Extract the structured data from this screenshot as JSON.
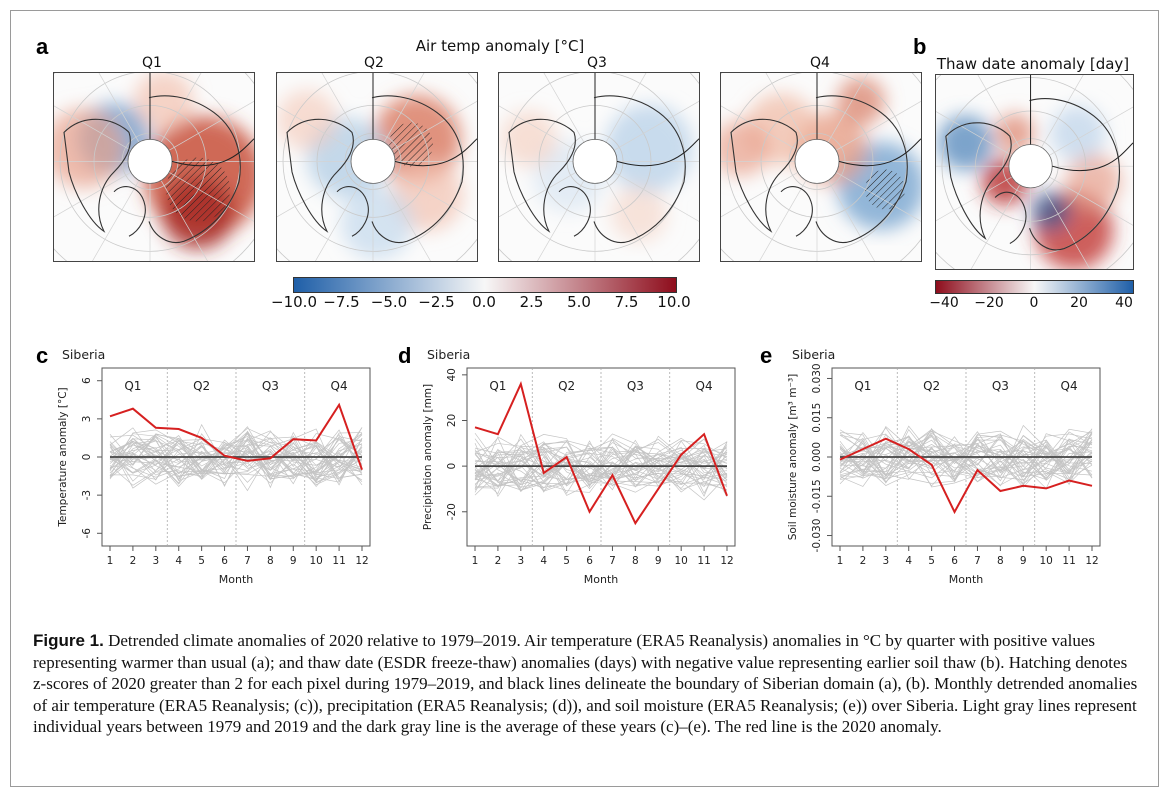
{
  "panels": {
    "a": "a",
    "b": "b",
    "c": "c",
    "d": "d",
    "e": "e"
  },
  "map_panel": {
    "title": "Air temp anomaly [°C]",
    "quarters": [
      "Q1",
      "Q2",
      "Q3",
      "Q4"
    ],
    "colorbar": {
      "ticks": [
        "−10.0",
        "−7.5",
        "−5.0",
        "−2.5",
        "0.0",
        "2.5",
        "5.0",
        "7.5",
        "10.0"
      ],
      "low_color": "#1f5fa8",
      "mid_color": "#f7f7f7",
      "high_color": "#8e0d1c"
    }
  },
  "thaw_panel": {
    "title": "Thaw date anomaly [day]",
    "colorbar": {
      "ticks": [
        "−40",
        "−20",
        "0",
        "20",
        "40"
      ],
      "low_color": "#8e0d1c",
      "mid_color": "#f7f7f7",
      "high_color": "#1f5fa8"
    }
  },
  "chart_data": [
    {
      "type": "line",
      "title": "Siberia",
      "xlabel": "Month",
      "ylabel": "Temperature anomaly [°C]",
      "x": [
        1,
        2,
        3,
        4,
        5,
        6,
        7,
        8,
        9,
        10,
        11,
        12
      ],
      "ylim": [
        -7,
        7
      ],
      "yticks": [
        -6,
        -3,
        0,
        3,
        6
      ],
      "quarters": [
        "Q1",
        "Q2",
        "Q3",
        "Q4"
      ],
      "series": [
        {
          "name": "2020",
          "color": "#d62020",
          "values": [
            3.2,
            3.8,
            2.3,
            2.2,
            1.5,
            0.1,
            -0.3,
            -0.1,
            1.4,
            1.3,
            4.1,
            -1.0
          ]
        }
      ],
      "mean_line": 0
    },
    {
      "type": "line",
      "title": "Siberia",
      "xlabel": "Month",
      "ylabel": "Precipitation anomaly [mm]",
      "x": [
        1,
        2,
        3,
        4,
        5,
        6,
        7,
        8,
        9,
        10,
        11,
        12
      ],
      "ylim": [
        -35,
        43
      ],
      "yticks": [
        -20,
        0,
        20,
        40
      ],
      "quarters": [
        "Q1",
        "Q2",
        "Q3",
        "Q4"
      ],
      "series": [
        {
          "name": "2020",
          "color": "#d62020",
          "values": [
            17,
            14,
            36,
            -3,
            4,
            -20,
            -4,
            -25,
            -10,
            5,
            14,
            -13
          ]
        }
      ],
      "mean_line": 0
    },
    {
      "type": "line",
      "title": "Siberia",
      "xlabel": "Month",
      "ylabel": "Soil moisture anomaly [m³ m⁻³]",
      "x": [
        1,
        2,
        3,
        4,
        5,
        6,
        7,
        8,
        9,
        10,
        11,
        12
      ],
      "ylim": [
        -0.034,
        0.034
      ],
      "yticks": [
        "-0.030",
        "-0.015",
        "0.000",
        "0.015",
        "0.030"
      ],
      "quarters": [
        "Q1",
        "Q2",
        "Q3",
        "Q4"
      ],
      "series": [
        {
          "name": "2020",
          "color": "#d62020",
          "values": [
            -0.001,
            0.003,
            0.007,
            0.003,
            -0.003,
            -0.021,
            -0.005,
            -0.013,
            -0.011,
            -0.012,
            -0.009,
            -0.011
          ]
        }
      ],
      "mean_line": 0
    }
  ],
  "caption": {
    "label": "Figure 1.",
    "text": " Detrended climate anomalies of 2020 relative to 1979–2019. Air temperature (ERA5 Reanalysis) anomalies in  °C by quarter with positive values representing warmer than usual (a); and thaw date (ESDR freeze-thaw) anomalies (days) with negative value representing earlier soil thaw (b). Hatching denotes z-scores of 2020 greater than 2 for each pixel during 1979–2019, and black lines delineate the boundary of Siberian domain (a), (b). Monthly detrended anomalies of air temperature (ERA5 Reanalysis; (c)), precipitation (ERA5 Reanalysis; (d)), and soil moisture (ERA5 Reanalysis; (e)) over Siberia. Light gray lines represent individual years between 1979 and 2019 and the dark gray line is the average of these years (c)–(e). The red line is the 2020 anomaly."
  }
}
